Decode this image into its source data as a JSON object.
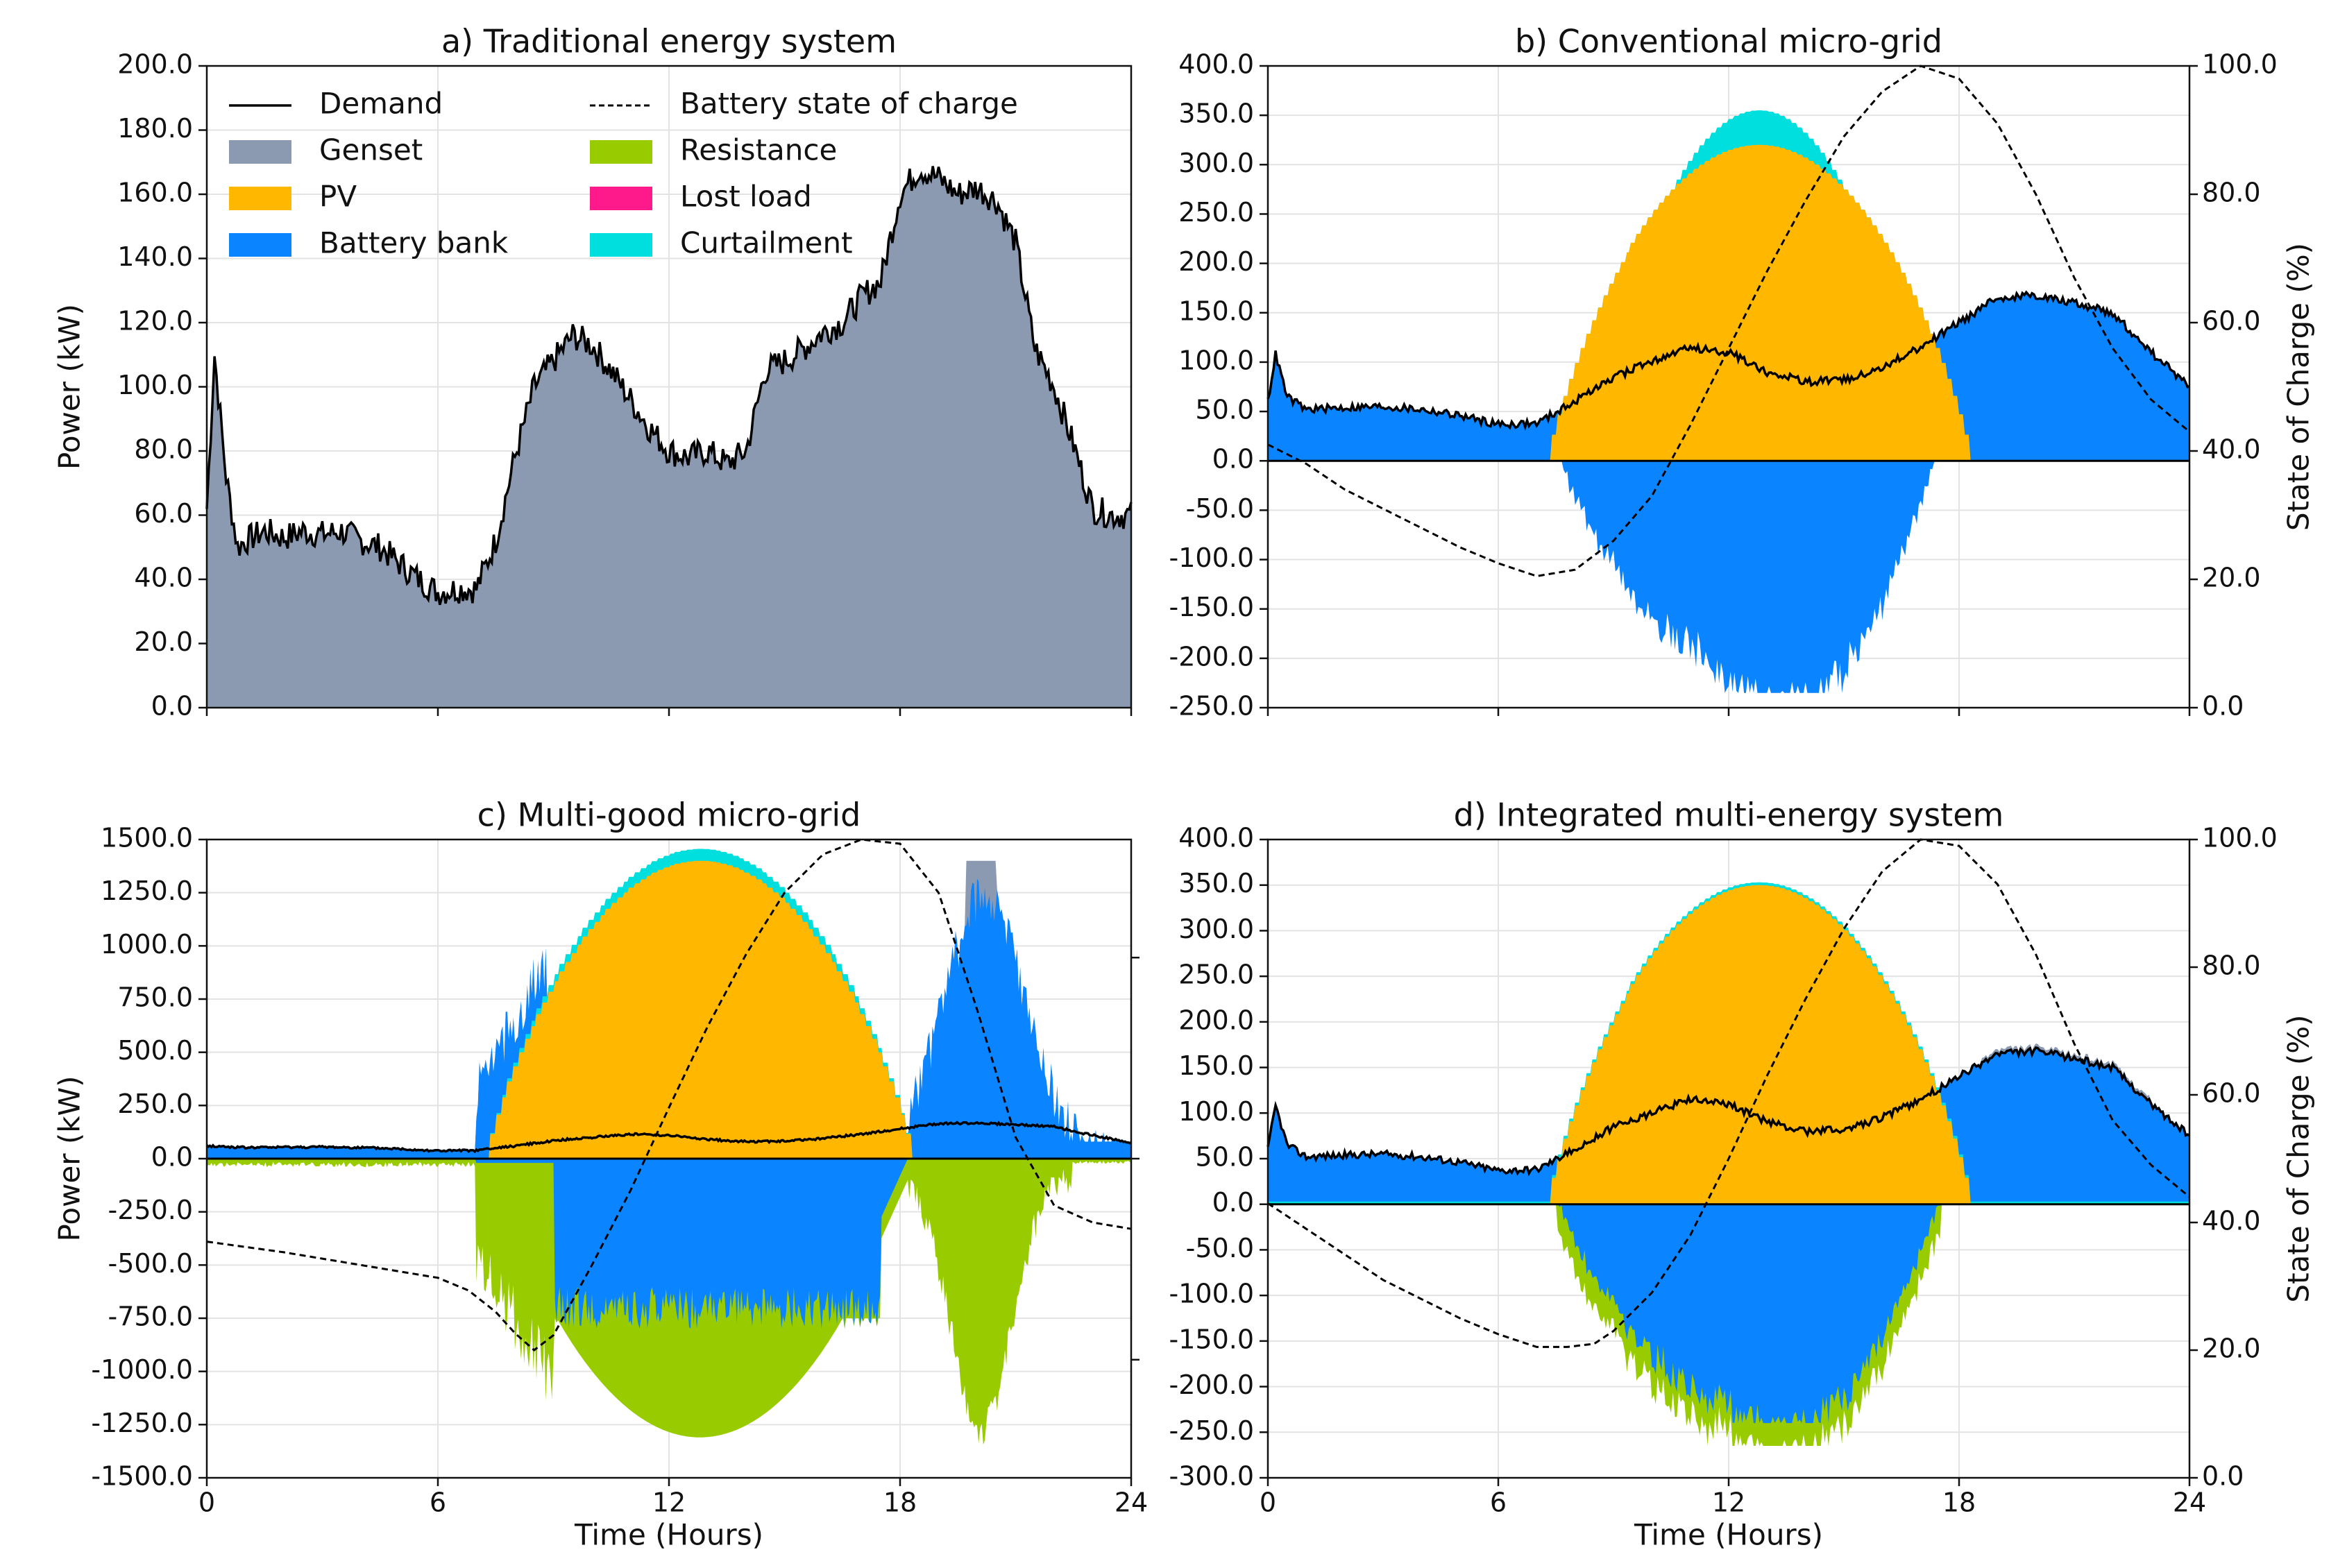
{
  "colors": {
    "genset": "#8c9ab1",
    "pv": "#ffb700",
    "battery": "#0a84ff",
    "resistance": "#99cc00",
    "lost_load": "#ff1a8c",
    "curtailment": "#00dede",
    "demand": "#000000"
  },
  "legend": {
    "left": [
      "Demand",
      "Genset",
      "PV",
      "Battery bank"
    ],
    "right": [
      "Battery state of charge",
      "Resistance",
      "Lost load",
      "Curtailment"
    ]
  },
  "chart_data": [
    {
      "id": "a",
      "type": "area",
      "title": "a) Traditional energy system",
      "xlabel": "",
      "ylabel": "Power (kW)",
      "xlim": [
        0,
        24
      ],
      "ylim": [
        0,
        200
      ],
      "xticks": [
        0,
        6,
        12,
        18,
        24
      ],
      "xtick_labels": [
        "",
        "",
        "",
        "",
        ""
      ],
      "yticks": [
        "0.0",
        "20.0",
        "40.0",
        "60.0",
        "80.0",
        "100.0",
        "120.0",
        "140.0",
        "160.0",
        "180.0",
        "200.0"
      ],
      "series": [
        {
          "name": "Demand",
          "x": [
            0,
            0.2,
            0.5,
            0.8,
            1.0,
            1.5,
            2,
            2.5,
            3,
            3.5,
            4,
            4.5,
            5,
            5.5,
            6,
            6.5,
            7,
            7.5,
            8,
            8.5,
            9,
            9.5,
            10,
            10.5,
            11,
            11.5,
            12,
            12.5,
            13,
            13.5,
            14,
            14.5,
            15,
            15.5,
            16,
            16.5,
            17,
            17.5,
            18,
            18.5,
            19,
            19.5,
            20,
            20.5,
            21,
            21.5,
            22,
            22.5,
            23,
            23.5,
            24
          ],
          "values": [
            62,
            110,
            72,
            50,
            52,
            55,
            53,
            55,
            54,
            55,
            52,
            50,
            45,
            40,
            36,
            37,
            37,
            52,
            78,
            100,
            108,
            116,
            113,
            105,
            96,
            87,
            80,
            78,
            80,
            76,
            80,
            105,
            108,
            112,
            117,
            120,
            128,
            133,
            160,
            168,
            165,
            160,
            162,
            158,
            145,
            112,
            100,
            82,
            62,
            60,
            60
          ]
        }
      ],
      "filled": [
        "Genset"
      ]
    },
    {
      "id": "b",
      "type": "area",
      "title": "b) Conventional micro-grid",
      "xlabel": "",
      "ylabel": "",
      "ylabel2": "State of Charge (%)",
      "xlim": [
        0,
        24
      ],
      "ylim": [
        -250,
        400
      ],
      "xticks": [
        0,
        6,
        12,
        18,
        24
      ],
      "xtick_labels": [
        "",
        "",
        "",
        "",
        ""
      ],
      "yticks": [
        "-250.0",
        "-200.0",
        "-150.0",
        "-100.0",
        "-50.0",
        "0.0",
        "50.0",
        "100.0",
        "150.0",
        "200.0",
        "250.0",
        "300.0",
        "350.0",
        "400.0"
      ],
      "y2ticks": [
        "0.0",
        "20.0",
        "40.0",
        "60.0",
        "80.0",
        "100.0"
      ],
      "series": [
        {
          "name": "Demand",
          "x": [
            0,
            0.2,
            0.5,
            1,
            2,
            3,
            4,
            5,
            6,
            7,
            8,
            9,
            10,
            11,
            12,
            13,
            14,
            15,
            16,
            17,
            18,
            19,
            20,
            21,
            22,
            23,
            24
          ],
          "values": [
            60,
            108,
            65,
            52,
            54,
            55,
            52,
            46,
            37,
            38,
            60,
            85,
            100,
            115,
            110,
            90,
            80,
            82,
            95,
            115,
            140,
            165,
            168,
            160,
            150,
            110,
            75
          ]
        },
        {
          "name": "PV",
          "peak": 320,
          "start": 7.2,
          "end": 18.3,
          "peak_at": 12.75
        },
        {
          "name": "Curtailment",
          "peak": 355,
          "start": 8.4,
          "end": 17.2,
          "peak_at": 12.75
        },
        {
          "name": "Battery bank",
          "charge_peak": -235
        },
        {
          "name": "Battery state of charge",
          "x": [
            0,
            1,
            2,
            3,
            4,
            5,
            6,
            7,
            8,
            9,
            10,
            11,
            12,
            13,
            14,
            15,
            16,
            17,
            18,
            19,
            20,
            21,
            22,
            23,
            24
          ],
          "values": [
            41,
            38,
            34,
            31,
            28,
            25,
            22.5,
            20.5,
            21.5,
            26,
            33,
            44,
            56,
            68,
            79,
            89,
            96,
            100,
            98,
            91,
            80,
            67,
            56,
            48,
            43
          ]
        }
      ]
    },
    {
      "id": "c",
      "type": "area",
      "title": "c) Multi-good micro-grid",
      "xlabel": "Time (Hours)",
      "ylabel": "Power (kW)",
      "xlim": [
        0,
        24
      ],
      "ylim": [
        -1500,
        1500
      ],
      "xticks": [
        0,
        6,
        12,
        18,
        24
      ],
      "xtick_labels": [
        "0",
        "6",
        "12",
        "18",
        "24"
      ],
      "yticks": [
        "-1500.0",
        "-1250.0",
        "-1000.0",
        "-750.0",
        "-500.0",
        "-250.0",
        "0.0",
        "250.0",
        "500.0",
        "750.0",
        "1000.0",
        "1250.0",
        "1500.0"
      ],
      "series": [
        {
          "name": "Demand",
          "x": [
            0,
            1,
            2,
            3,
            4,
            5,
            6,
            7,
            8,
            9,
            10,
            11,
            12,
            13,
            14,
            15,
            16,
            17,
            18,
            19,
            20,
            21,
            22,
            23,
            24
          ],
          "values": [
            60,
            52,
            54,
            55,
            52,
            46,
            37,
            38,
            60,
            85,
            100,
            115,
            110,
            90,
            80,
            82,
            95,
            115,
            140,
            165,
            168,
            160,
            150,
            110,
            75
          ]
        },
        {
          "name": "PV",
          "peak": 1400,
          "start": 7.2,
          "end": 18.3,
          "peak_at": 12.75
        },
        {
          "name": "Curtailment",
          "peak": 1460
        },
        {
          "name": "Battery bank",
          "range_kw": [
            -780,
            1400
          ]
        },
        {
          "name": "Resistance",
          "min": -1310
        },
        {
          "name": "Battery state of charge",
          "x": [
            0,
            2,
            4,
            6,
            6.8,
            7.5,
            8,
            8.5,
            9,
            10,
            11,
            12,
            13,
            14,
            15,
            16,
            17,
            18,
            19,
            20,
            21,
            22,
            23,
            24
          ],
          "values": [
            -390,
            -440,
            -500,
            -560,
            -620,
            -720,
            -820,
            -900,
            -830,
            -500,
            -150,
            240,
            620,
            960,
            1250,
            1430,
            1500,
            1480,
            1250,
            700,
            100,
            -220,
            -300,
            -330
          ]
        }
      ]
    },
    {
      "id": "d",
      "type": "area",
      "title": "d) Integrated multi-energy system",
      "xlabel": "Time (Hours)",
      "ylabel": "",
      "ylabel2": "State of Charge (%)",
      "xlim": [
        0,
        24
      ],
      "ylim": [
        -300,
        400
      ],
      "xticks": [
        0,
        6,
        12,
        18,
        24
      ],
      "xtick_labels": [
        "0",
        "6",
        "12",
        "18",
        "24"
      ],
      "yticks": [
        "-300.0",
        "-250.0",
        "-200.0",
        "-150.0",
        "-100.0",
        "-50.0",
        "0.0",
        "50.0",
        "100.0",
        "150.0",
        "200.0",
        "250.0",
        "300.0",
        "350.0",
        "400.0"
      ],
      "y2ticks": [
        "0.0",
        "20.0",
        "40.0",
        "60.0",
        "80.0",
        "100.0"
      ],
      "series": [
        {
          "name": "Demand",
          "x": [
            0,
            0.2,
            0.5,
            1,
            2,
            3,
            4,
            5,
            6,
            7,
            8,
            9,
            10,
            11,
            12,
            13,
            14,
            15,
            16,
            17,
            18,
            19,
            20,
            21,
            22,
            23,
            24
          ],
          "values": [
            60,
            108,
            65,
            52,
            54,
            55,
            52,
            46,
            37,
            38,
            60,
            85,
            100,
            115,
            110,
            90,
            80,
            82,
            95,
            115,
            140,
            165,
            168,
            160,
            150,
            110,
            75
          ]
        },
        {
          "name": "PV",
          "peak": 350,
          "start": 7.2,
          "end": 18.3,
          "peak_at": 12.75
        },
        {
          "name": "Battery bank",
          "charge_peak": -240
        },
        {
          "name": "Resistance",
          "min": -265
        },
        {
          "name": "Battery state of charge",
          "x": [
            0,
            1,
            2,
            3,
            4,
            5,
            6,
            7,
            7.8,
            8.5,
            9,
            10,
            11,
            12,
            13,
            14,
            15,
            16,
            17,
            18,
            19,
            20,
            21,
            22,
            23,
            24
          ],
          "values": [
            43,
            39,
            35,
            31,
            28,
            25,
            22.5,
            20.5,
            20.5,
            21,
            23,
            29,
            38,
            50,
            63,
            75,
            86,
            95,
            100,
            99,
            93,
            82,
            68,
            56,
            49,
            44
          ]
        }
      ]
    }
  ]
}
